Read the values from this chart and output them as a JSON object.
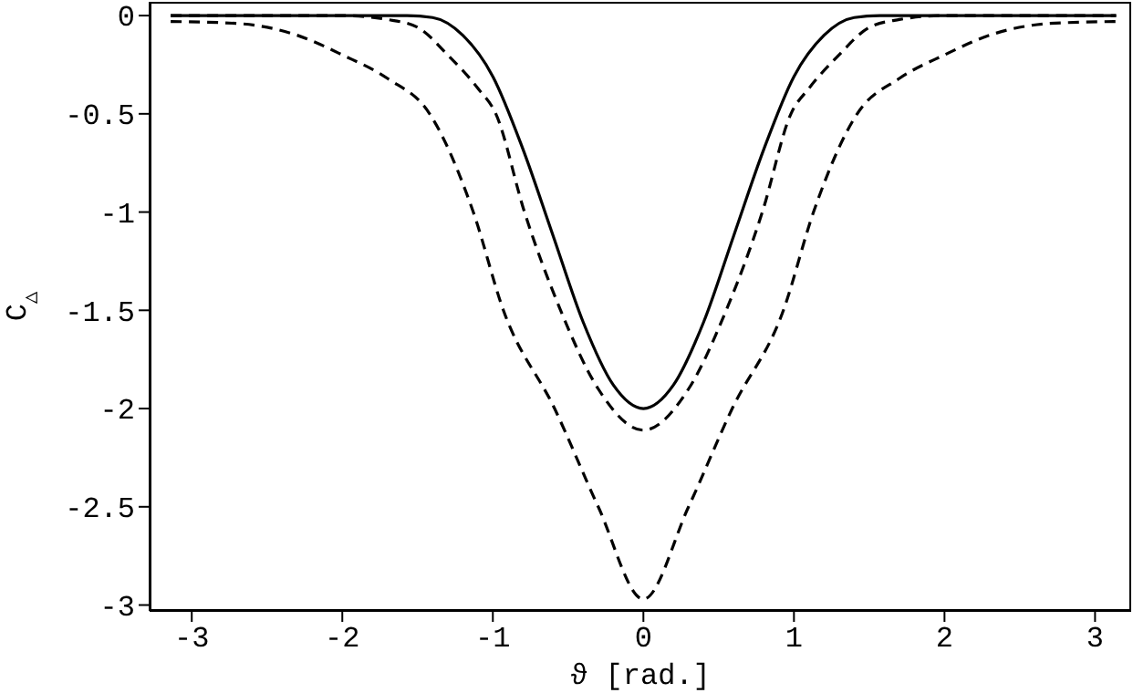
{
  "chart_data": {
    "type": "line",
    "xlabel": "ϑ [rad.]",
    "ylabel": "C$_{△}$",
    "xlim": [
      -3.28,
      3.24
    ],
    "ylim": [
      -3.03,
      0.07
    ],
    "xticks": [
      -3,
      -2,
      -1,
      0,
      1,
      2,
      3
    ],
    "yticks": [
      0,
      -0.5,
      -1,
      -1.5,
      -2,
      -2.5,
      -3
    ],
    "grid": false,
    "legend": false,
    "marker": "none",
    "series": [
      {
        "color": "#000000",
        "line_style": "solid",
        "x": [
          -3.14,
          -2.5,
          -2,
          -1.57,
          -1.4,
          -1.2,
          -1,
          -0.8,
          -0.6,
          -0.4,
          -0.2,
          0,
          0.2,
          0.4,
          0.6,
          0.8,
          1,
          1.2,
          1.4,
          1.57,
          2,
          2.5,
          3.14
        ],
        "values": [
          0,
          0,
          0,
          0,
          -0.01,
          -0.1,
          -0.31,
          -0.68,
          -1.12,
          -1.56,
          -1.88,
          -2,
          -1.88,
          -1.56,
          -1.12,
          -0.68,
          -0.31,
          -0.1,
          -0.01,
          0,
          0,
          0,
          0
        ]
      },
      {
        "color": "#000000",
        "line_style": "dashed",
        "x": [
          -3.14,
          -2.5,
          -2,
          -1.7,
          -1.5,
          -1.3,
          -1.1,
          -0.98,
          -0.79,
          -0.55,
          -0.3,
          0,
          0.3,
          0.55,
          0.79,
          0.98,
          1.1,
          1.3,
          1.5,
          1.7,
          2,
          2.5,
          3.14
        ],
        "values": [
          0,
          0,
          0,
          -0.02,
          -0.06,
          -0.2,
          -0.37,
          -0.5,
          -1,
          -1.5,
          -1.9,
          -2.11,
          -1.9,
          -1.5,
          -1,
          -0.5,
          -0.37,
          -0.2,
          -0.06,
          -0.02,
          0,
          0,
          0
        ]
      },
      {
        "color": "#000000",
        "line_style": "dashed",
        "x": [
          -3.14,
          -2.7,
          -2.3,
          -2,
          -1.7,
          -1.42,
          -1.13,
          -0.93,
          -0.59,
          -0.3,
          0,
          0.3,
          0.59,
          0.93,
          1.13,
          1.42,
          1.7,
          2,
          2.3,
          2.7,
          3.14
        ],
        "values": [
          -0.03,
          -0.04,
          -0.1,
          -0.2,
          -0.32,
          -0.5,
          -1,
          -1.5,
          -2,
          -2.5,
          -2.97,
          -2.5,
          -2,
          -1.5,
          -1,
          -0.5,
          -0.32,
          -0.2,
          -0.1,
          -0.04,
          -0.03
        ]
      }
    ]
  }
}
